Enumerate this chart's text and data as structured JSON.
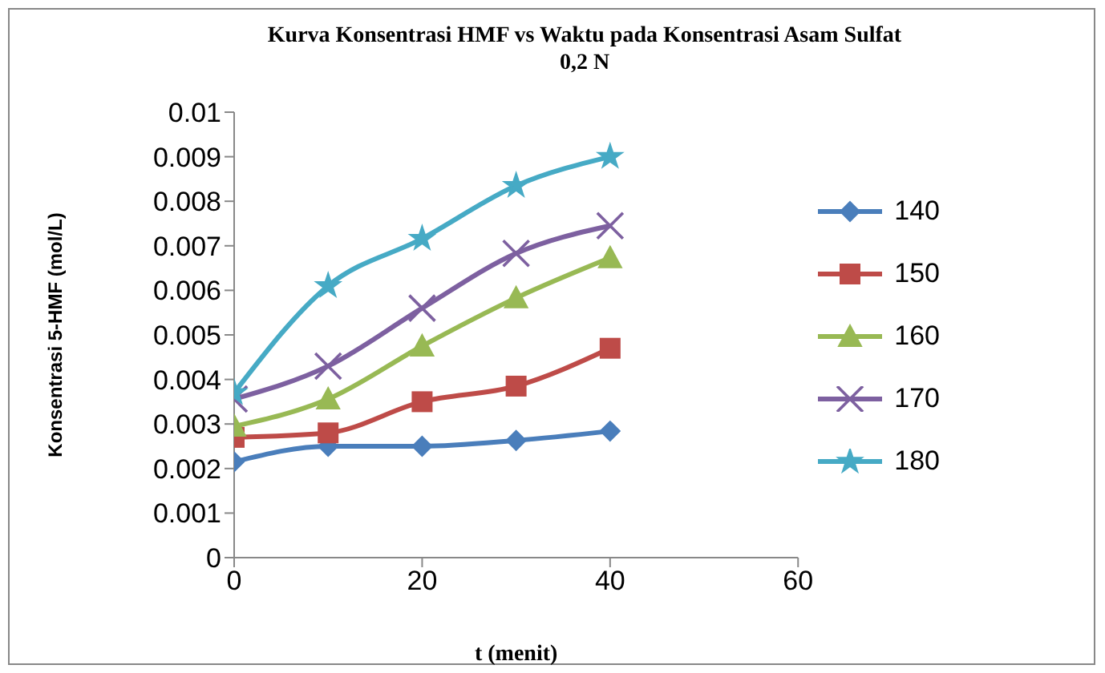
{
  "chart_data": {
    "type": "line",
    "title": "Kurva Konsentrasi HMF vs Waktu pada Konsentrasi Asam Sulfat 0,2 N",
    "xlabel": "t (menit)",
    "ylabel": "Konsentrasi 5-HMF (mol/L)",
    "x": [
      0,
      10,
      20,
      30,
      40
    ],
    "xlim": [
      0,
      60
    ],
    "xticks": [
      0,
      20,
      40,
      60
    ],
    "ylim": [
      0,
      0.01
    ],
    "yticks": [
      0,
      0.001,
      0.002,
      0.003,
      0.004,
      0.005,
      0.006,
      0.007,
      0.008,
      0.009,
      0.01
    ],
    "grid": false,
    "legend": "right",
    "series": [
      {
        "name": "140",
        "color": "#4a7ebb",
        "marker": "diamond",
        "values": [
          0.00215,
          0.0025,
          0.0025,
          0.00263,
          0.00284
        ]
      },
      {
        "name": "150",
        "color": "#be4b48",
        "marker": "square",
        "values": [
          0.0027,
          0.0028,
          0.0035,
          0.00385,
          0.0047
        ]
      },
      {
        "name": "160",
        "color": "#98b954",
        "marker": "triangle",
        "values": [
          0.00295,
          0.00356,
          0.00475,
          0.00583,
          0.00673
        ]
      },
      {
        "name": "170",
        "color": "#7d60a0",
        "marker": "cross",
        "values": [
          0.00356,
          0.0043,
          0.0056,
          0.00683,
          0.00745
        ]
      },
      {
        "name": "180",
        "color": "#46aac5",
        "marker": "star",
        "values": [
          0.0037,
          0.0061,
          0.00716,
          0.00835,
          0.009
        ]
      }
    ]
  }
}
